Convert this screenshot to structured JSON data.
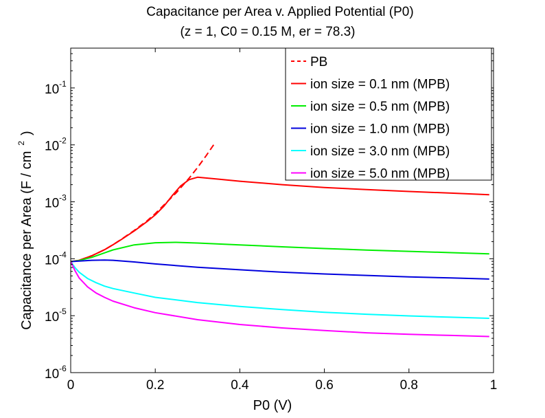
{
  "chart_data": {
    "type": "line",
    "title": "Capacitance per Area v. Applied Potential (P0)",
    "subtitle": "(z = 1, C0 = 0.15 M, er = 78.3)",
    "xlabel": "P0 (V)",
    "ylabel": "Capacitance per Area (F / cm",
    "ylabel_exp": "2",
    "ylabel_close": ")",
    "xlim": [
      0,
      1
    ],
    "ylim": [
      1e-06,
      0.5
    ],
    "yscale": "log",
    "grid": false,
    "legend_position": "top-right",
    "x_ticks": [
      0,
      0.2,
      0.4,
      0.6,
      0.8,
      1
    ],
    "x_tick_labels": [
      "0",
      "0.2",
      "0.4",
      "0.6",
      "0.8",
      "1"
    ],
    "y_ticks": [
      {
        "value": 1e-06,
        "base": "10",
        "exp": "-6"
      },
      {
        "value": 1e-05,
        "base": "10",
        "exp": "-5"
      },
      {
        "value": 0.0001,
        "base": "10",
        "exp": "-4"
      },
      {
        "value": 0.001,
        "base": "10",
        "exp": "-3"
      },
      {
        "value": 0.01,
        "base": "10",
        "exp": "-2"
      },
      {
        "value": 0.1,
        "base": "10",
        "exp": "-1"
      }
    ],
    "series": [
      {
        "name": "PB",
        "color": "#ff0000",
        "dash": true,
        "x": [
          0,
          0.02,
          0.05,
          0.08,
          0.1,
          0.12,
          0.15,
          0.18,
          0.2,
          0.22,
          0.25,
          0.28,
          0.3,
          0.32,
          0.34
        ],
        "y": [
          8.9e-05,
          9.4e-05,
          0.000113,
          0.000144,
          0.000176,
          0.00022,
          0.000313,
          0.00046,
          0.00062,
          0.00087,
          0.00145,
          0.0026,
          0.004,
          0.0064,
          0.0105
        ]
      },
      {
        "name": "ion size = 0.1 nm (MPB)",
        "color": "#ff0000",
        "dash": false,
        "x": [
          0,
          0.02,
          0.05,
          0.08,
          0.1,
          0.12,
          0.15,
          0.18,
          0.2,
          0.22,
          0.24,
          0.26,
          0.28,
          0.3,
          0.35,
          0.4,
          0.5,
          0.6,
          0.7,
          0.8,
          0.9,
          0.99
        ],
        "y": [
          8.9e-05,
          9.4e-05,
          0.000113,
          0.000144,
          0.000176,
          0.000218,
          0.000306,
          0.000446,
          0.00059,
          0.00083,
          0.00128,
          0.0019,
          0.00245,
          0.0027,
          0.0025,
          0.0023,
          0.002,
          0.00178,
          0.00164,
          0.00152,
          0.00142,
          0.00133
        ]
      },
      {
        "name": "ion size = 0.5 nm (MPB)",
        "color": "#00ee00",
        "dash": false,
        "x": [
          0,
          0.02,
          0.05,
          0.08,
          0.1,
          0.15,
          0.2,
          0.25,
          0.3,
          0.4,
          0.5,
          0.6,
          0.7,
          0.8,
          0.9,
          0.99
        ],
        "y": [
          8.9e-05,
          9.3e-05,
          0.000106,
          0.000127,
          0.000143,
          0.000175,
          0.000191,
          0.000194,
          0.000189,
          0.000175,
          0.000162,
          0.000151,
          0.000142,
          0.000135,
          0.000128,
          0.000122
        ]
      },
      {
        "name": "ion size = 1.0 nm (MPB)",
        "color": "#0000dd",
        "dash": false,
        "x": [
          0,
          0.02,
          0.05,
          0.08,
          0.1,
          0.15,
          0.2,
          0.3,
          0.4,
          0.5,
          0.6,
          0.7,
          0.8,
          0.9,
          0.99
        ],
        "y": [
          8.9e-05,
          9.1e-05,
          9.4e-05,
          9.5e-05,
          9.4e-05,
          8.8e-05,
          8.1e-05,
          7.1e-05,
          6.4e-05,
          5.8e-05,
          5.4e-05,
          5.1e-05,
          4.8e-05,
          4.6e-05,
          4.4e-05
        ]
      },
      {
        "name": "ion size = 3.0 nm (MPB)",
        "color": "#00ffff",
        "dash": false,
        "x": [
          0,
          0.01,
          0.02,
          0.04,
          0.06,
          0.08,
          0.1,
          0.15,
          0.2,
          0.3,
          0.4,
          0.5,
          0.6,
          0.7,
          0.8,
          0.9,
          0.99
        ],
        "y": [
          8.9e-05,
          7e-05,
          5.8e-05,
          4.5e-05,
          3.8e-05,
          3.3e-05,
          3e-05,
          2.5e-05,
          2.1e-05,
          1.7e-05,
          1.45e-05,
          1.28e-05,
          1.15e-05,
          1.06e-05,
          9.9e-06,
          9.4e-06,
          9e-06
        ]
      },
      {
        "name": "ion size = 5.0 nm (MPB)",
        "color": "#ff00ff",
        "dash": false,
        "x": [
          0,
          0.01,
          0.02,
          0.04,
          0.06,
          0.08,
          0.1,
          0.15,
          0.2,
          0.3,
          0.4,
          0.5,
          0.6,
          0.7,
          0.8,
          0.9,
          0.99
        ],
        "y": [
          8.9e-05,
          6.2e-05,
          4.6e-05,
          3.2e-05,
          2.5e-05,
          2.1e-05,
          1.8e-05,
          1.38e-05,
          1.13e-05,
          8.5e-06,
          7e-06,
          6.1e-06,
          5.5e-06,
          5e-06,
          4.7e-06,
          4.5e-06,
          4.3e-06
        ]
      }
    ]
  }
}
